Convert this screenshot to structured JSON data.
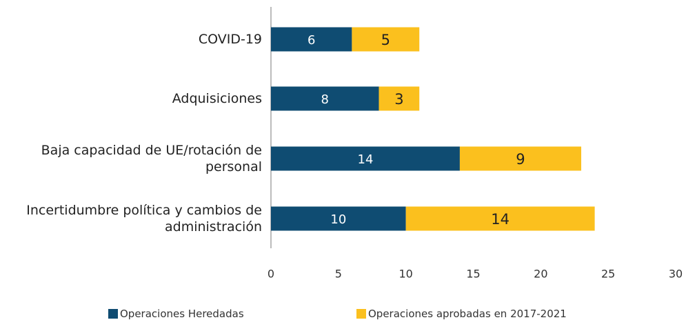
{
  "chart_data": {
    "type": "bar",
    "orientation": "horizontal",
    "stacked": true,
    "categories": [
      "COVID-19",
      "Adquisiciones",
      "Baja capacidad de UE/rotación de personal",
      "Incertidumbre política y cambios de administración"
    ],
    "series": [
      {
        "name": "Operaciones Heredadas",
        "color": "#0f4c72",
        "values": [
          6,
          8,
          14,
          10
        ]
      },
      {
        "name": "Operaciones aprobadas en 2017-2021",
        "color": "#fbc01e",
        "values": [
          5,
          3,
          9,
          14
        ]
      }
    ],
    "xlim": [
      0,
      30
    ],
    "xticks": [
      0,
      5,
      10,
      15,
      20,
      25,
      30
    ],
    "grid": false,
    "legend": "bottom"
  }
}
